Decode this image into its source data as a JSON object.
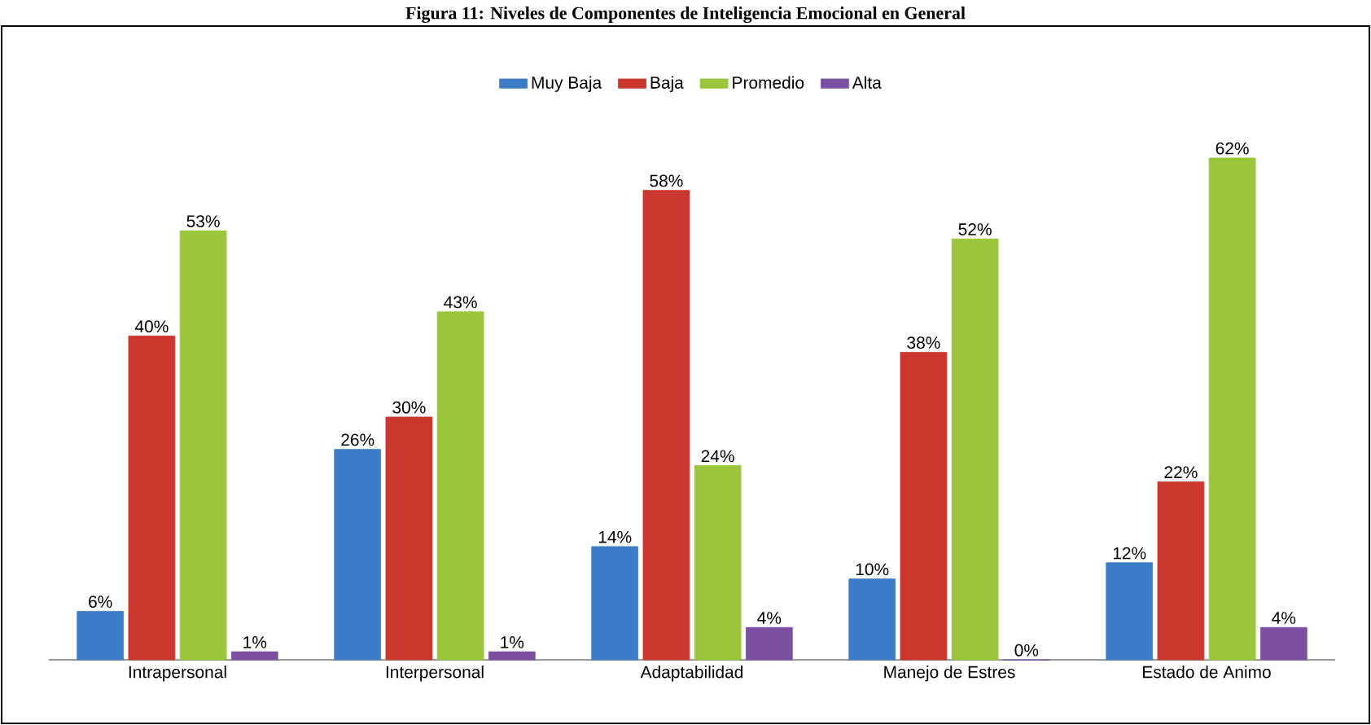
{
  "chart_data": {
    "type": "bar",
    "title": "Figura 11: Niveles de Componentes de Inteligencia Emocional en General",
    "categories": [
      "Intrapersonal",
      "Interpersonal",
      "Adaptabilidad",
      "Manejo de Estres",
      "Estado de Animo"
    ],
    "series": [
      {
        "name": "Muy Baja",
        "color": "#3d7cc9",
        "values": [
          6,
          26,
          14,
          10,
          12
        ],
        "value_labels": [
          "6%",
          "26%",
          "14%",
          "10%",
          "12%"
        ]
      },
      {
        "name": "Baja",
        "color": "#c9372f",
        "values": [
          40,
          30,
          58,
          38,
          22
        ],
        "value_labels": [
          "40%",
          "30%",
          "58%",
          "38%",
          "22%"
        ]
      },
      {
        "name": "Promedio",
        "color": "#9bc63c",
        "values": [
          53,
          43,
          24,
          52,
          62
        ],
        "value_labels": [
          "53%",
          "43%",
          "24%",
          "52%",
          "62%"
        ]
      },
      {
        "name": "Alta",
        "color": "#7b50a2",
        "values": [
          1,
          1,
          4,
          0,
          4
        ],
        "value_labels": [
          "1%",
          "1%",
          "4%",
          "0%",
          "4%"
        ]
      }
    ],
    "legend": "top"
  }
}
